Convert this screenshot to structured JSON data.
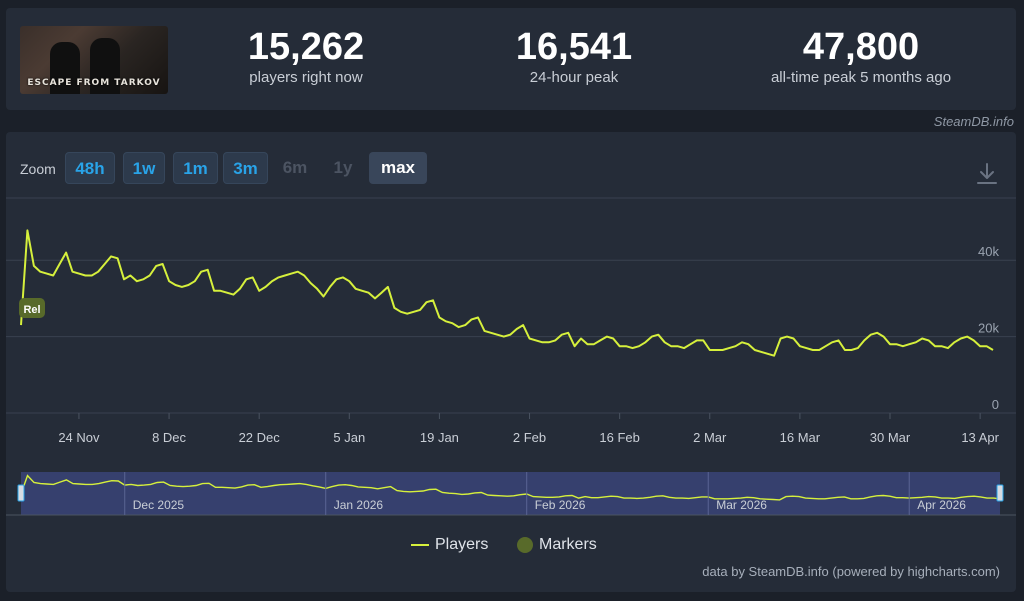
{
  "stats": [
    {
      "value": "15,262",
      "label": "players right now"
    },
    {
      "value": "16,541",
      "label": "24-hour peak"
    },
    {
      "value": "47,800",
      "label": "all-time peak 5 months ago"
    }
  ],
  "thumbnail_text": "ESCAPE FROM TARKOV",
  "credit_top": "SteamDB.info",
  "zoom": {
    "label": "Zoom",
    "buttons": [
      {
        "label": "48h",
        "state": "on"
      },
      {
        "label": "1w",
        "state": "on"
      },
      {
        "label": "1m",
        "state": "on"
      },
      {
        "label": "3m",
        "state": "on"
      },
      {
        "label": "6m",
        "state": "off"
      },
      {
        "label": "1y",
        "state": "off"
      },
      {
        "label": "max",
        "state": "selected"
      }
    ]
  },
  "download_icon": "download-icon",
  "legend": {
    "players": "Players",
    "markers": "Markers"
  },
  "credit_bottom": "data by SteamDB.info (powered by highcharts.com)",
  "colors": {
    "line": "#d6f03c",
    "navigator_fill": "#3a4478",
    "marker": "#586a2a",
    "accent": "#29a3e8"
  },
  "chart_data": {
    "type": "line",
    "x_tick_labels": [
      "24 Nov",
      "8 Dec",
      "22 Dec",
      "5 Jan",
      "19 Jan",
      "2 Feb",
      "16 Feb",
      "2 Mar",
      "16 Mar",
      "30 Mar",
      "13 Apr"
    ],
    "y_tick_labels": [
      "0",
      "20k",
      "40k"
    ],
    "ylim": [
      0,
      50000
    ],
    "grid": true,
    "legend_position": "bottom",
    "navigator_labels": [
      "Dec 2025",
      "Jan 2026",
      "Feb 2026",
      "Mar 2026",
      "Apr 2026"
    ],
    "markers": [
      {
        "label": "Rel",
        "date": "2025-11-15"
      }
    ],
    "series": [
      {
        "name": "Players",
        "points": [
          [
            "2025-11-15",
            23000
          ],
          [
            "2025-11-16",
            47800
          ],
          [
            "2025-11-17",
            38500
          ],
          [
            "2025-11-18",
            37000
          ],
          [
            "2025-11-19",
            36500
          ],
          [
            "2025-11-20",
            36000
          ],
          [
            "2025-11-21",
            39000
          ],
          [
            "2025-11-22",
            42000
          ],
          [
            "2025-11-23",
            37000
          ],
          [
            "2025-11-24",
            36500
          ],
          [
            "2025-11-25",
            36000
          ],
          [
            "2025-11-26",
            36000
          ],
          [
            "2025-11-27",
            37000
          ],
          [
            "2025-11-28",
            39000
          ],
          [
            "2025-11-29",
            41000
          ],
          [
            "2025-11-30",
            40500
          ],
          [
            "2025-12-01",
            35000
          ],
          [
            "2025-12-02",
            36000
          ],
          [
            "2025-12-03",
            34500
          ],
          [
            "2025-12-04",
            35000
          ],
          [
            "2025-12-05",
            36000
          ],
          [
            "2025-12-06",
            38500
          ],
          [
            "2025-12-07",
            39000
          ],
          [
            "2025-12-08",
            34500
          ],
          [
            "2025-12-09",
            33500
          ],
          [
            "2025-12-10",
            33000
          ],
          [
            "2025-12-11",
            33500
          ],
          [
            "2025-12-12",
            34500
          ],
          [
            "2025-12-13",
            37000
          ],
          [
            "2025-12-14",
            37500
          ],
          [
            "2025-12-15",
            32000
          ],
          [
            "2025-12-16",
            32000
          ],
          [
            "2025-12-17",
            31500
          ],
          [
            "2025-12-18",
            31000
          ],
          [
            "2025-12-19",
            32500
          ],
          [
            "2025-12-20",
            35000
          ],
          [
            "2025-12-21",
            35500
          ],
          [
            "2025-12-22",
            32000
          ],
          [
            "2025-12-23",
            33000
          ],
          [
            "2025-12-24",
            34500
          ],
          [
            "2025-12-25",
            35500
          ],
          [
            "2025-12-26",
            36000
          ],
          [
            "2025-12-27",
            36500
          ],
          [
            "2025-12-28",
            37000
          ],
          [
            "2025-12-29",
            36000
          ],
          [
            "2025-12-30",
            34000
          ],
          [
            "2025-12-31",
            32500
          ],
          [
            "2026-01-01",
            30500
          ],
          [
            "2026-01-02",
            33000
          ],
          [
            "2026-01-03",
            35000
          ],
          [
            "2026-01-04",
            35500
          ],
          [
            "2026-01-05",
            34500
          ],
          [
            "2026-01-06",
            32500
          ],
          [
            "2026-01-07",
            32000
          ],
          [
            "2026-01-08",
            31500
          ],
          [
            "2026-01-09",
            30000
          ],
          [
            "2026-01-10",
            31500
          ],
          [
            "2026-01-11",
            33000
          ],
          [
            "2026-01-12",
            27500
          ],
          [
            "2026-01-13",
            26500
          ],
          [
            "2026-01-14",
            26000
          ],
          [
            "2026-01-15",
            26500
          ],
          [
            "2026-01-16",
            27000
          ],
          [
            "2026-01-17",
            29000
          ],
          [
            "2026-01-18",
            29500
          ],
          [
            "2026-01-19",
            25000
          ],
          [
            "2026-01-20",
            24000
          ],
          [
            "2026-01-21",
            23500
          ],
          [
            "2026-01-22",
            22500
          ],
          [
            "2026-01-23",
            23000
          ],
          [
            "2026-01-24",
            24500
          ],
          [
            "2026-01-25",
            25000
          ],
          [
            "2026-01-26",
            21500
          ],
          [
            "2026-01-27",
            21000
          ],
          [
            "2026-01-28",
            20500
          ],
          [
            "2026-01-29",
            20000
          ],
          [
            "2026-01-30",
            20500
          ],
          [
            "2026-01-31",
            22000
          ],
          [
            "2026-02-01",
            23000
          ],
          [
            "2026-02-02",
            19500
          ],
          [
            "2026-02-03",
            19000
          ],
          [
            "2026-02-04",
            18500
          ],
          [
            "2026-02-05",
            18500
          ],
          [
            "2026-02-06",
            19000
          ],
          [
            "2026-02-07",
            20500
          ],
          [
            "2026-02-08",
            21000
          ],
          [
            "2026-02-09",
            17500
          ],
          [
            "2026-02-10",
            19500
          ],
          [
            "2026-02-11",
            18000
          ],
          [
            "2026-02-12",
            18000
          ],
          [
            "2026-02-13",
            19000
          ],
          [
            "2026-02-14",
            20000
          ],
          [
            "2026-02-15",
            19500
          ],
          [
            "2026-02-16",
            17500
          ],
          [
            "2026-02-17",
            17500
          ],
          [
            "2026-02-18",
            17000
          ],
          [
            "2026-02-19",
            17500
          ],
          [
            "2026-02-20",
            18500
          ],
          [
            "2026-02-21",
            20000
          ],
          [
            "2026-02-22",
            20500
          ],
          [
            "2026-02-23",
            18500
          ],
          [
            "2026-02-24",
            17500
          ],
          [
            "2026-02-25",
            17500
          ],
          [
            "2026-02-26",
            17000
          ],
          [
            "2026-02-27",
            18000
          ],
          [
            "2026-02-28",
            19000
          ],
          [
            "2026-03-01",
            19000
          ],
          [
            "2026-03-02",
            16500
          ],
          [
            "2026-03-03",
            16500
          ],
          [
            "2026-03-04",
            16500
          ],
          [
            "2026-03-05",
            17000
          ],
          [
            "2026-03-06",
            17500
          ],
          [
            "2026-03-07",
            18500
          ],
          [
            "2026-03-08",
            18000
          ],
          [
            "2026-03-09",
            16500
          ],
          [
            "2026-03-10",
            16000
          ],
          [
            "2026-03-11",
            15500
          ],
          [
            "2026-03-12",
            15000
          ],
          [
            "2026-03-13",
            19500
          ],
          [
            "2026-03-14",
            20000
          ],
          [
            "2026-03-15",
            19500
          ],
          [
            "2026-03-16",
            17500
          ],
          [
            "2026-03-17",
            17000
          ],
          [
            "2026-03-18",
            16500
          ],
          [
            "2026-03-19",
            16500
          ],
          [
            "2026-03-20",
            17500
          ],
          [
            "2026-03-21",
            18500
          ],
          [
            "2026-03-22",
            19000
          ],
          [
            "2026-03-23",
            16500
          ],
          [
            "2026-03-24",
            16500
          ],
          [
            "2026-03-25",
            17000
          ],
          [
            "2026-03-26",
            19000
          ],
          [
            "2026-03-27",
            20500
          ],
          [
            "2026-03-28",
            21000
          ],
          [
            "2026-03-29",
            20000
          ],
          [
            "2026-03-30",
            18000
          ],
          [
            "2026-03-31",
            18000
          ],
          [
            "2026-04-01",
            17500
          ],
          [
            "2026-04-02",
            18000
          ],
          [
            "2026-04-03",
            18500
          ],
          [
            "2026-04-04",
            19500
          ],
          [
            "2026-04-05",
            19000
          ],
          [
            "2026-04-06",
            17500
          ],
          [
            "2026-04-07",
            17500
          ],
          [
            "2026-04-08",
            17000
          ],
          [
            "2026-04-09",
            18500
          ],
          [
            "2026-04-10",
            19500
          ],
          [
            "2026-04-11",
            20000
          ],
          [
            "2026-04-12",
            19000
          ],
          [
            "2026-04-13",
            17500
          ],
          [
            "2026-04-14",
            17500
          ],
          [
            "2026-04-15",
            16500
          ]
        ]
      }
    ]
  }
}
